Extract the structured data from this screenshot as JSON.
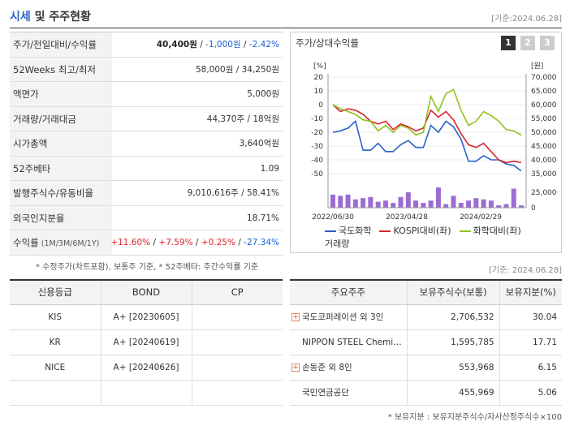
{
  "header": {
    "title_accent": "시세",
    "title_rest": " 및 주주현황",
    "base_date": "[기준:2024.06.28]"
  },
  "info": [
    {
      "label": "주가/전일대비/수익률",
      "val_main": "40,400원",
      "val_sep1": " / ",
      "val_change": "-1,000원",
      "val_sep2": " / ",
      "val_rate": "-2.42%"
    },
    {
      "label": "52Weeks 최고/최저",
      "value": "58,000원 / 34,250원"
    },
    {
      "label": "액면가",
      "value": "5,000원"
    },
    {
      "label": "거래량/거래대금",
      "value": "44,370주 / 18억원"
    },
    {
      "label": "시가총액",
      "value": "3,640억원"
    },
    {
      "label": "52주베타",
      "value": "1.09"
    },
    {
      "label": "발행주식수/유동비율",
      "value": "9,010,616주 / 58.41%"
    },
    {
      "label": "외국인지분율",
      "value": "18.71%"
    },
    {
      "label": "수익률",
      "label_sub": " (1M/3M/6M/1Y)",
      "returns": [
        "+11.60%",
        "+7.59%",
        "+0.25%",
        "-27.34%"
      ],
      "sep": "/ "
    }
  ],
  "footnote": "* 수정주가(차트포함), 보통주 기준, * 52주베타: 주간수익률 기준",
  "chart_panel": {
    "title": "주가/상대수익률",
    "tabs": [
      "1",
      "2",
      "3"
    ],
    "active_tab": 0
  },
  "chart_data": {
    "type": "line",
    "left_unit": "[%]",
    "right_unit": "[원]",
    "left_ticks": [
      20,
      10,
      0,
      -10,
      -20,
      -30,
      -40,
      -50
    ],
    "right_ticks": [
      "70,000",
      "65,000",
      "60,000",
      "55,000",
      "50,000",
      "45,000",
      "40,000",
      "35,000"
    ],
    "volume_ticks": [
      "25,000",
      "0"
    ],
    "ylim_left": [
      -50,
      20
    ],
    "x_labels": [
      "2022/06/30",
      "2023/04/28",
      "2024/02/29"
    ],
    "series": [
      {
        "name": "국도화학",
        "color": "#2a62c8",
        "values": [
          -20,
          -19,
          -17,
          -12,
          -33,
          -33,
          -28,
          -34,
          -34,
          -29,
          -26,
          -31,
          -31,
          -15,
          -20,
          -12,
          -16,
          -25,
          -41,
          -41,
          -37,
          -40,
          -40,
          -43,
          -44,
          -48
        ]
      },
      {
        "name": "KOSPI대비(좌)",
        "color": "#d9232d",
        "values": [
          0,
          -5,
          -3,
          -4,
          -7,
          -12,
          -14,
          -12,
          -18,
          -14,
          -16,
          -19,
          -17,
          -4,
          -9,
          -5,
          -11,
          -21,
          -29,
          -31,
          -28,
          -34,
          -40,
          -42,
          -41,
          -42
        ]
      },
      {
        "name": "화학대비(좌)",
        "color": "#8fc31f",
        "values": [
          0,
          -3,
          -5,
          -7,
          -11,
          -12,
          -19,
          -15,
          -20,
          -15,
          -17,
          -22,
          -20,
          6,
          -5,
          8,
          11,
          -4,
          -15,
          -12,
          -5,
          -8,
          -12,
          -18,
          -19,
          -22
        ]
      }
    ],
    "volume": {
      "name": "거래량",
      "color": "#9b6cd1",
      "values": [
        11,
        10,
        11,
        7,
        8,
        9,
        5,
        6,
        4,
        9,
        13,
        6,
        4,
        6,
        17,
        3,
        10,
        4,
        6,
        8,
        7,
        6,
        2,
        3,
        16,
        2
      ]
    }
  },
  "base_date2": "[기준: 2024.06.28]",
  "rating": {
    "headers": [
      "신용등급",
      "BOND",
      "CP"
    ],
    "rows": [
      {
        "agency": "KIS",
        "bond": "A+  [20230605]",
        "cp": ""
      },
      {
        "agency": "KR",
        "bond": "A+  [20240619]",
        "cp": ""
      },
      {
        "agency": "NICE",
        "bond": "A+  [20240626]",
        "cp": ""
      },
      {
        "agency": "",
        "bond": "",
        "cp": ""
      }
    ]
  },
  "holders": {
    "headers": [
      "주요주주",
      "보유주식수(보통)",
      "보유지분(%)"
    ],
    "rows": [
      {
        "expand": true,
        "name": "국도코퍼레이션 외 3인",
        "shares": "2,706,532",
        "pct": "30.04"
      },
      {
        "expand": false,
        "name": "NIPPON STEEL Chemi…",
        "shares": "1,595,785",
        "pct": "17.71"
      },
      {
        "expand": true,
        "name": "손동준 외 8인",
        "shares": "553,968",
        "pct": "6.15"
      },
      {
        "expand": false,
        "name": "국민연금공단",
        "shares": "455,969",
        "pct": "5.06"
      }
    ]
  },
  "footnote2": "* 보유지분 : 보유지분주식수/자사산정주식수×100"
}
